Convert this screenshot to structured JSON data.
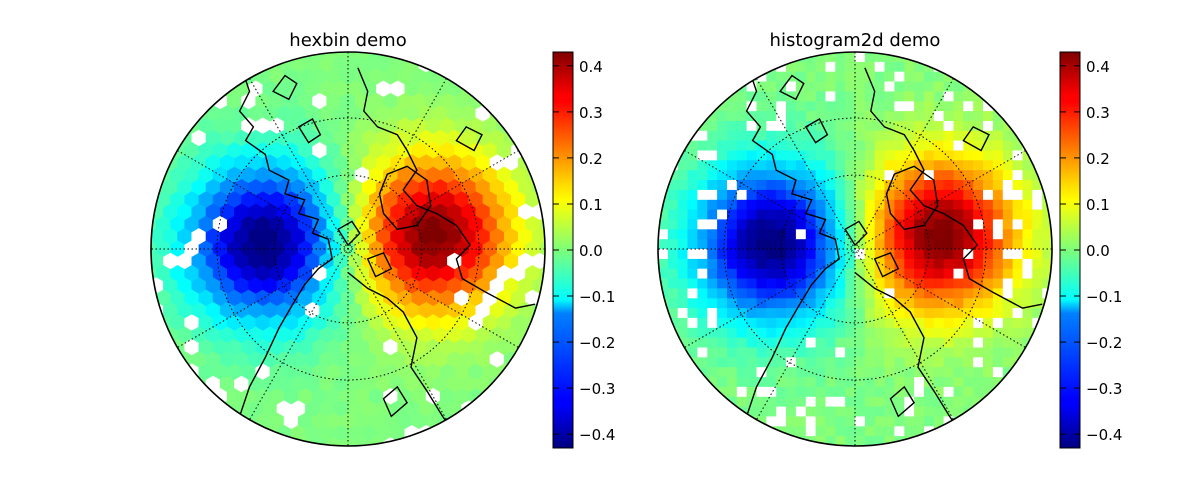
{
  "chart_data": [
    {
      "type": "heatmap",
      "title": "hexbin demo",
      "projection": "north polar stereographic",
      "binning": "hexagonal",
      "colormap": "jet",
      "colorbar": {
        "range": [
          -0.43,
          0.43
        ],
        "ticks": [
          0.4,
          0.3,
          0.2,
          0.1,
          0.0,
          -0.1,
          -0.2,
          -0.3,
          -0.4
        ],
        "tick_labels": [
          "0.4",
          "0.3",
          "0.2",
          "0.1",
          "0.0",
          "−0.1",
          "−0.2",
          "−0.3",
          "−0.4"
        ]
      },
      "field": {
        "description_of_values": "signed dipole pattern, negative on left, positive on right",
        "minimum": -0.43,
        "maximum": 0.43
      }
    },
    {
      "type": "heatmap",
      "title": "histogram2d demo",
      "projection": "north polar stereographic",
      "binning": "rectangular",
      "colormap": "jet",
      "colorbar": {
        "range": [
          -0.43,
          0.43
        ],
        "ticks": [
          0.4,
          0.3,
          0.2,
          0.1,
          0.0,
          -0.1,
          -0.2,
          -0.3,
          -0.4
        ],
        "tick_labels": [
          "0.4",
          "0.3",
          "0.2",
          "0.1",
          "0.0",
          "−0.1",
          "−0.2",
          "−0.3",
          "−0.4"
        ]
      },
      "field": {
        "minimum": -0.43,
        "maximum": 0.43
      }
    }
  ],
  "colors": {
    "background": "#ffffff",
    "coastline": "#000000",
    "graticule": "#000000",
    "empty_bin": "#ffffff"
  }
}
